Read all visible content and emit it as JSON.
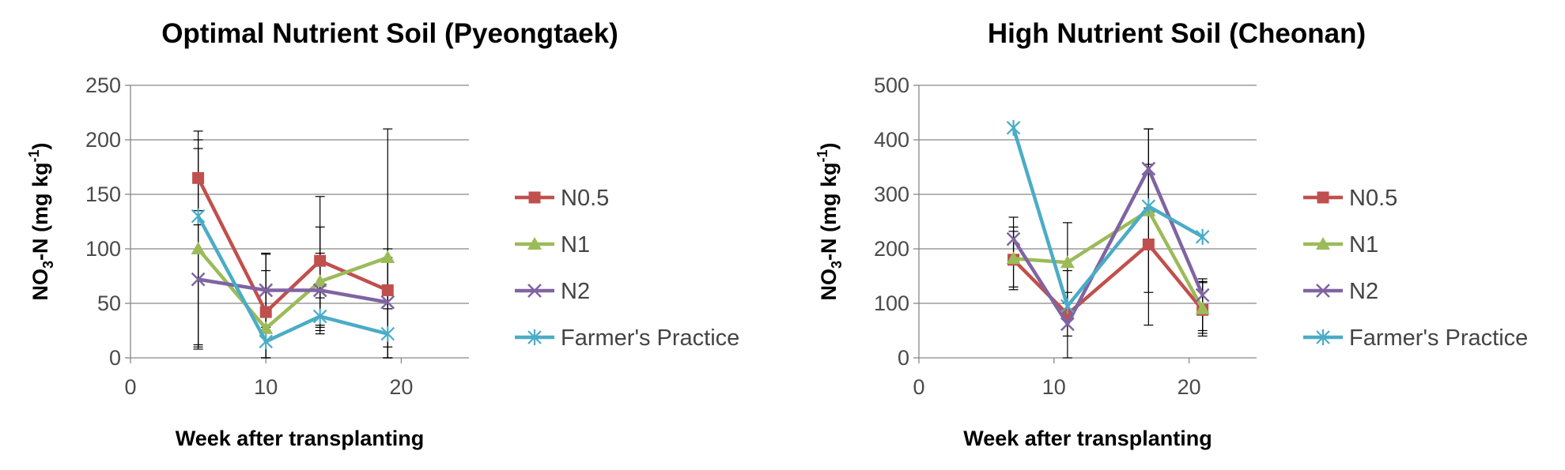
{
  "chart_data": [
    {
      "type": "line",
      "title": "Optimal Nutrient Soil (Pyeongtaek)",
      "xlabel": "Week after transplanting",
      "ylabel": "NO3-N (mg kg-1)",
      "ylabel_parts": {
        "main": "NO",
        "sub": "3",
        "mid": "-N (mg kg",
        "sup": "-1",
        "end": ")"
      },
      "xlim": [
        0,
        25
      ],
      "ylim": [
        0,
        250
      ],
      "xticks": [
        "0",
        "10",
        "20"
      ],
      "yticks": [
        "0",
        "50",
        "100",
        "150",
        "200",
        "250"
      ],
      "grid": "horizontal",
      "legend_position": "right",
      "series": [
        {
          "name": "N0.5",
          "color": "#c0504d",
          "marker": "square",
          "points": [
            [
              5,
              165
            ],
            [
              10,
              42
            ],
            [
              14,
              89
            ],
            [
              19,
              62
            ]
          ],
          "errors": [
            [
              5,
              122,
              208
            ],
            [
              10,
              0,
              80
            ],
            [
              14,
              30,
              148
            ],
            [
              19,
              0,
              100
            ]
          ]
        },
        {
          "name": "N1",
          "color": "#9bbb59",
          "marker": "triangle",
          "points": [
            [
              5,
              100
            ],
            [
              10,
              27
            ],
            [
              14,
              70
            ],
            [
              19,
              92
            ]
          ],
          "errors": [
            [
              5,
              12,
              192
            ],
            [
              10,
              0,
              95
            ],
            [
              14,
              25,
              120
            ],
            [
              19,
              0,
              210
            ]
          ]
        },
        {
          "name": "N2",
          "color": "#8064a2",
          "marker": "x",
          "points": [
            [
              5,
              72
            ],
            [
              10,
              62
            ],
            [
              14,
              62
            ],
            [
              19,
              51
            ]
          ],
          "errors": [
            [
              5,
              10,
              135
            ],
            [
              10,
              28,
              96
            ],
            [
              14,
              28,
              96
            ],
            [
              19,
              10,
              92
            ]
          ]
        },
        {
          "name": "Farmer's Practice",
          "color": "#4bacc6",
          "marker": "star",
          "points": [
            [
              5,
              130
            ],
            [
              10,
              15
            ],
            [
              14,
              38
            ],
            [
              19,
              22
            ]
          ],
          "errors": [
            [
              5,
              8,
              200
            ],
            [
              10,
              0,
              40
            ],
            [
              14,
              22,
              55
            ],
            [
              19,
              0,
              45
            ]
          ]
        }
      ]
    },
    {
      "type": "line",
      "title": "High Nutrient Soil (Cheonan)",
      "xlabel": "Week after transplanting",
      "ylabel": "NO3-N (mg kg-1)",
      "ylabel_parts": {
        "main": "NO",
        "sub": "3",
        "mid": "-N (mg kg",
        "sup": "-1",
        "end": ")"
      },
      "xlim": [
        0,
        25
      ],
      "ylim": [
        0,
        500
      ],
      "xticks": [
        "0",
        "10",
        "20"
      ],
      "yticks": [
        "0",
        "100",
        "200",
        "300",
        "400",
        "500"
      ],
      "grid": "horizontal",
      "legend_position": "right",
      "series": [
        {
          "name": "N0.5",
          "color": "#c0504d",
          "marker": "square",
          "points": [
            [
              7,
              180
            ],
            [
              11,
              80
            ],
            [
              17,
              208
            ],
            [
              21,
              88
            ]
          ],
          "errors": [
            [
              7,
              130,
              232
            ],
            [
              11,
              40,
              120
            ],
            [
              17,
              60,
              355
            ],
            [
              21,
              40,
              138
            ]
          ]
        },
        {
          "name": "N1",
          "color": "#9bbb59",
          "marker": "triangle",
          "points": [
            [
              7,
              182
            ],
            [
              11,
              175
            ],
            [
              17,
              270
            ],
            [
              21,
              90
            ]
          ],
          "errors": [
            [
              7,
              125,
              240
            ],
            [
              11,
              100,
              248
            ],
            [
              17,
              120,
              420
            ],
            [
              21,
              45,
              140
            ]
          ]
        },
        {
          "name": "N2",
          "color": "#8064a2",
          "marker": "x",
          "points": [
            [
              7,
              218
            ],
            [
              11,
              62
            ],
            [
              17,
              347
            ],
            [
              21,
              115
            ]
          ],
          "errors": [
            [
              7,
              180,
              258
            ],
            [
              11,
              0,
              160
            ],
            [
              17,
              275,
              420
            ],
            [
              21,
              50,
              145
            ]
          ]
        },
        {
          "name": "Farmer's Practice",
          "color": "#4bacc6",
          "marker": "star",
          "points": [
            [
              7,
              422
            ],
            [
              11,
              95
            ],
            [
              17,
              278
            ],
            [
              21,
              222
            ]
          ],
          "errors": []
        }
      ]
    }
  ]
}
